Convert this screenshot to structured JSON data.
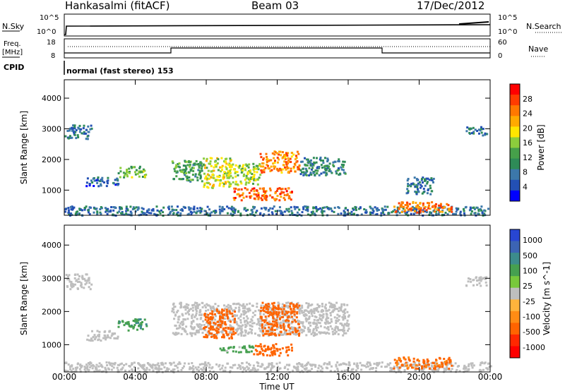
{
  "header": {
    "station": "Hankasalmi (fitACF)",
    "beam": "Beam 03",
    "date": "17/Dec/2012"
  },
  "top_panels": {
    "nsky_label": "N.Sky",
    "nsearch_label": "N.Search",
    "nsky_ticks": [
      "10^5",
      "10^0"
    ],
    "nsearch_ticks": [
      "10^5",
      "10^0"
    ],
    "freq_label_top": "Freq.",
    "freq_label_unit": "[MHz]",
    "freq_ticks": [
      "18",
      "8"
    ],
    "nave_label": "Nave",
    "nave_ticks": [
      "60",
      "0"
    ],
    "cpid_label": "CPID",
    "cpid_value": "normal (fast stereo) 153"
  },
  "colors": {
    "power_scale": [
      "#0000ff",
      "#2350b4",
      "#3c78aa",
      "#2e8b57",
      "#46a04a",
      "#8ccd3c",
      "#ffe600",
      "#ffaa00",
      "#ff7800",
      "#ff3c00",
      "#ff0000"
    ],
    "velocity_scale": [
      "#2846d2",
      "#3c64b4",
      "#3c8c8c",
      "#46a050",
      "#78c83c",
      "#bebebe",
      "#ffb43c",
      "#ff8c14",
      "#ff6400",
      "#ff2800",
      "#ff0000"
    ],
    "ground_scatter": "#bebebe"
  },
  "chart_data": [
    {
      "type": "heatmap",
      "panel": "power",
      "xlabel": "",
      "ylabel": "Slant Range [km]",
      "x_ticks": [
        "00:00",
        "04:00",
        "08:00",
        "12:00",
        "16:00",
        "20:00",
        "00:00"
      ],
      "y_ticks": [
        "1000",
        "2000",
        "3000",
        "4000"
      ],
      "ylim": [
        180,
        4600
      ],
      "colorbar_label": "Power [dB]",
      "colorbar_ticks": [
        "4",
        "8",
        "12",
        "16",
        "20",
        "24",
        "28"
      ],
      "colorbar_range": [
        0,
        32
      ],
      "regions": [
        {
          "t0": 0.0,
          "t1": 24.0,
          "r0": 200,
          "r1": 500,
          "value": 7
        },
        {
          "t0": 1.2,
          "t1": 3.0,
          "r0": 1150,
          "r1": 1450,
          "value": 6
        },
        {
          "t0": 3.0,
          "t1": 4.6,
          "r0": 1450,
          "r1": 1800,
          "value": 14
        },
        {
          "t0": 6.0,
          "t1": 7.8,
          "r0": 1300,
          "r1": 2000,
          "value": 12
        },
        {
          "t0": 7.8,
          "t1": 9.6,
          "r0": 1100,
          "r1": 2100,
          "value": 18
        },
        {
          "t0": 9.6,
          "t1": 11.0,
          "r0": 1200,
          "r1": 1900,
          "value": 16
        },
        {
          "t0": 11.0,
          "t1": 13.2,
          "r0": 1600,
          "r1": 2300,
          "value": 24
        },
        {
          "t0": 13.2,
          "t1": 15.8,
          "r0": 1500,
          "r1": 2100,
          "value": 9
        },
        {
          "t0": 9.5,
          "t1": 12.8,
          "r0": 700,
          "r1": 1100,
          "value": 26
        },
        {
          "t0": 18.5,
          "t1": 21.8,
          "r0": 300,
          "r1": 650,
          "value": 25
        },
        {
          "t0": 19.2,
          "t1": 20.8,
          "r0": 900,
          "r1": 1450,
          "value": 8
        },
        {
          "t0": 22.6,
          "t1": 23.8,
          "r0": 2800,
          "r1": 3100,
          "value": 8
        },
        {
          "t0": 0.0,
          "t1": 1.5,
          "r0": 2700,
          "r1": 3150,
          "value": 7
        }
      ]
    },
    {
      "type": "heatmap",
      "panel": "velocity",
      "xlabel": "Time UT",
      "ylabel": "Slant Range [km]",
      "x_ticks": [
        "00:00",
        "04:00",
        "08:00",
        "12:00",
        "16:00",
        "20:00",
        "00:00"
      ],
      "y_ticks": [
        "1000",
        "2000",
        "3000",
        "4000"
      ],
      "ylim": [
        180,
        4600
      ],
      "colorbar_label": "Velocity [m s^-1]",
      "colorbar_ticks": [
        "1000",
        "500",
        "100",
        "25",
        "-25",
        "-100",
        "-500",
        "-1000"
      ],
      "regions": [
        {
          "t0": 0.0,
          "t1": 24.0,
          "r0": 200,
          "r1": 500,
          "value": 0
        },
        {
          "t0": 1.2,
          "t1": 3.0,
          "r0": 1150,
          "r1": 1450,
          "value": 0
        },
        {
          "t0": 3.0,
          "t1": 4.6,
          "r0": 1450,
          "r1": 1800,
          "value": 80
        },
        {
          "t0": 6.0,
          "t1": 16.0,
          "r0": 1300,
          "r1": 2300,
          "value": 0
        },
        {
          "t0": 7.8,
          "t1": 9.6,
          "r0": 1200,
          "r1": 2100,
          "value": -200
        },
        {
          "t0": 11.0,
          "t1": 13.2,
          "r0": 1300,
          "r1": 2300,
          "value": -300
        },
        {
          "t0": 8.6,
          "t1": 10.6,
          "r0": 800,
          "r1": 1000,
          "value": 60
        },
        {
          "t0": 10.6,
          "t1": 12.8,
          "r0": 700,
          "r1": 1050,
          "value": -150
        },
        {
          "t0": 18.5,
          "t1": 21.8,
          "r0": 300,
          "r1": 650,
          "value": -120
        },
        {
          "t0": 0.0,
          "t1": 1.5,
          "r0": 2700,
          "r1": 3150,
          "value": 0
        },
        {
          "t0": 22.6,
          "t1": 23.8,
          "r0": 2800,
          "r1": 3100,
          "value": 0
        }
      ]
    }
  ]
}
